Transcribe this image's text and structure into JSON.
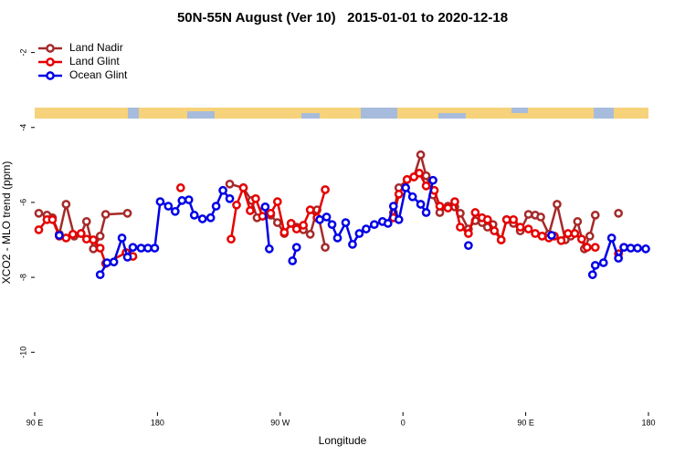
{
  "chart_data": {
    "type": "line",
    "title": "50N-55N August (Ver 10)   2015-01-01 to 2020-12-18",
    "x_label": "Longitude",
    "y_label": "XCO2 - MLO trend (ppm)",
    "xlim": [
      90,
      540
    ],
    "ylim": [
      -11.6,
      -1.45
    ],
    "xticks": [
      {
        "value": 90,
        "label": "90 E"
      },
      180,
      {
        "value": 270,
        "label": "90 W"
      },
      {
        "value": 360,
        "label": "0"
      },
      {
        "value": 450,
        "label": "90 E"
      },
      {
        "value": 540,
        "label": "180"
      }
    ],
    "yticks": [
      -2,
      -4,
      -6,
      -8,
      -10
    ],
    "legend": "top-left",
    "series": [
      {
        "name": "Land Nadir",
        "color": "#a52a2a",
        "x": [
          93,
          99,
          103,
          108,
          113,
          119,
          124,
          128,
          133,
          138,
          142,
          158,
          null,
          233,
          243,
          249,
          253,
          258,
          263,
          268,
          273,
          278,
          282,
          287,
          292,
          297,
          303,
          null,
          353,
          357,
          363,
          368,
          373,
          377,
          382,
          387,
          393,
          398,
          402,
          408,
          413,
          418,
          422,
          426,
          432,
          436,
          441,
          446,
          452,
          457,
          461,
          467,
          473,
          479,
          483,
          488,
          493,
          497,
          501,
          null,
          518
        ],
        "values": [
          -6.29,
          -6.34,
          -6.41,
          -6.85,
          -6.05,
          -6.9,
          -6.83,
          -6.51,
          -7.24,
          -6.9,
          -6.32,
          -6.29,
          null,
          -5.51,
          -5.61,
          -5.95,
          -6.41,
          -6.22,
          -6.34,
          -6.54,
          -6.83,
          -6.56,
          -6.66,
          -6.73,
          -6.85,
          -6.2,
          -7.2,
          null,
          -6.27,
          -5.61,
          -5.39,
          -5.32,
          -4.73,
          -5.29,
          -5.8,
          -6.27,
          -6.1,
          -6.12,
          -6.29,
          -6.71,
          -6.49,
          -6.54,
          -6.66,
          -6.59,
          -7,
          -6.46,
          -6.56,
          -6.76,
          -6.32,
          -6.34,
          -6.39,
          -6.85,
          -6.05,
          -7,
          -6.9,
          -6.51,
          -7.24,
          -6.9,
          -6.34,
          null,
          -6.29
        ]
      },
      {
        "name": "Land Glint",
        "color": "#e60000",
        "x": [
          93,
          99,
          103,
          108,
          113,
          118,
          124,
          128,
          133,
          138,
          142,
          157,
          162,
          null,
          197,
          null,
          234,
          238,
          243,
          248,
          252,
          257,
          263,
          268,
          273,
          278,
          282,
          287,
          292,
          297,
          303,
          null,
          353,
          357,
          363,
          368,
          372,
          377,
          383,
          387,
          393,
          398,
          402,
          408,
          413,
          418,
          422,
          427,
          432,
          436,
          441,
          446,
          452,
          457,
          462,
          467,
          471,
          476,
          481,
          486,
          491,
          495,
          501,
          null,
          518,
          522
        ],
        "values": [
          -6.73,
          -6.46,
          -6.46,
          -6.9,
          -6.95,
          -6.85,
          -6.83,
          -6.98,
          -7,
          -7.22,
          -7.63,
          -7.34,
          -7.44,
          null,
          -5.61,
          null,
          -6.98,
          -6.07,
          -5.61,
          -6.22,
          -5.9,
          -6.37,
          -6.29,
          -5.98,
          -6.8,
          -6.56,
          -6.71,
          -6.61,
          -6.2,
          -6.41,
          -5.66,
          null,
          -6.41,
          -5.78,
          -5.39,
          -5.32,
          -5.22,
          -5.56,
          -5.68,
          -6.1,
          -6.15,
          -5.98,
          -6.66,
          -6.83,
          -6.27,
          -6.41,
          -6.46,
          -6.76,
          -7,
          -6.46,
          -6.46,
          -6.66,
          -6.71,
          -6.83,
          -6.9,
          -6.95,
          -6.9,
          -7.02,
          -6.83,
          -6.83,
          -6.98,
          -7.2,
          -7.2,
          null,
          -7.37,
          -7.2
        ]
      },
      {
        "name": "Ocean Glint",
        "color": "#0000e6",
        "x": [
          108,
          null,
          138,
          143,
          148,
          154,
          158,
          162,
          168,
          173,
          178,
          182,
          188,
          193,
          198,
          203,
          207,
          213,
          219,
          223,
          228,
          233,
          null,
          259,
          262,
          null,
          279,
          282,
          null,
          299,
          304,
          308,
          312,
          318,
          323,
          328,
          333,
          339,
          345,
          349,
          353,
          357,
          362,
          367,
          373,
          377,
          382,
          null,
          408,
          null,
          469,
          null,
          499,
          501,
          507,
          513,
          518,
          522,
          527,
          532,
          538
        ],
        "values": [
          -6.88,
          null,
          -7.93,
          -7.61,
          -7.59,
          -6.95,
          -7.46,
          -7.2,
          -7.22,
          -7.22,
          -7.22,
          -5.98,
          -6.1,
          -6.24,
          -5.95,
          -5.93,
          -6.34,
          -6.44,
          -6.41,
          -6.1,
          -5.68,
          -5.9,
          null,
          -6.12,
          -7.24,
          null,
          -7.56,
          -7.2,
          null,
          -6.46,
          -6.39,
          -6.59,
          -6.95,
          -6.54,
          -7.12,
          -6.83,
          -6.71,
          -6.59,
          -6.51,
          -6.56,
          -6.1,
          -6.46,
          -5.61,
          -5.85,
          -6.05,
          -6.27,
          -5.41,
          null,
          -7.15,
          null,
          -6.88,
          null,
          -7.93,
          -7.68,
          -7.61,
          -6.95,
          -7.49,
          -7.2,
          -7.22,
          -7.22,
          -7.24
        ]
      }
    ]
  }
}
